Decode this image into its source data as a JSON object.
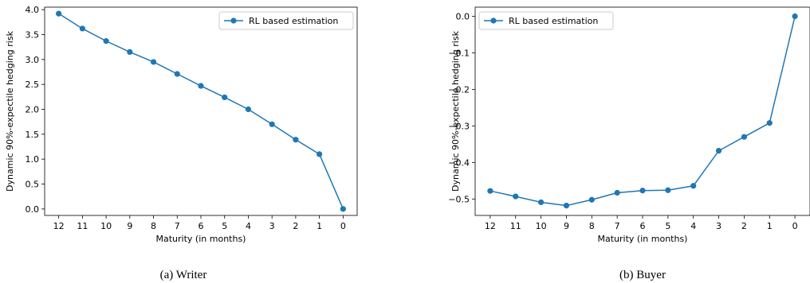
{
  "chart_data": [
    {
      "type": "line",
      "caption": "(a) Writer",
      "xlabel": "Maturity (in months)",
      "ylabel": "Dynamic 90%-expectile hedging risk",
      "categories": [
        "12",
        "11",
        "10",
        "9",
        "8",
        "7",
        "6",
        "5",
        "4",
        "3",
        "2",
        "1",
        "0"
      ],
      "series": [
        {
          "name": "RL based estimation",
          "color": "#1f77b4",
          "values": [
            3.92,
            3.62,
            3.37,
            3.15,
            2.95,
            2.71,
            2.47,
            2.24,
            2.0,
            1.7,
            1.39,
            1.1,
            0.0
          ]
        }
      ],
      "ylim": [
        -0.13,
        4.05
      ],
      "yticks": [
        0.0,
        0.5,
        1.0,
        1.5,
        2.0,
        2.5,
        3.0,
        3.5,
        4.0
      ],
      "ytick_labels": [
        "0.0",
        "0.5",
        "1.0",
        "1.5",
        "2.0",
        "2.5",
        "3.0",
        "3.5",
        "4.0"
      ],
      "legend": "upper right",
      "grid": false
    },
    {
      "type": "line",
      "caption": "(b) Buyer",
      "xlabel": "Maturity (in months)",
      "ylabel": "Dynamic 90%-expectile hedging risk",
      "categories": [
        "12",
        "11",
        "10",
        "9",
        "8",
        "7",
        "6",
        "5",
        "4",
        "3",
        "2",
        "1",
        "0"
      ],
      "series": [
        {
          "name": "RL based estimation",
          "color": "#1f77b4",
          "values": [
            -0.478,
            -0.493,
            -0.509,
            -0.518,
            -0.502,
            -0.483,
            -0.477,
            -0.476,
            -0.464,
            -0.368,
            -0.33,
            -0.292,
            0.0
          ]
        }
      ],
      "ylim": [
        -0.545,
        0.025
      ],
      "yticks": [
        0.0,
        -0.1,
        -0.2,
        -0.3,
        -0.4,
        -0.5
      ],
      "ytick_labels": [
        "0.0",
        "−0.1",
        "−0.2",
        "−0.3",
        "−0.4",
        "−0.5"
      ],
      "legend": "upper left",
      "grid": false
    }
  ]
}
